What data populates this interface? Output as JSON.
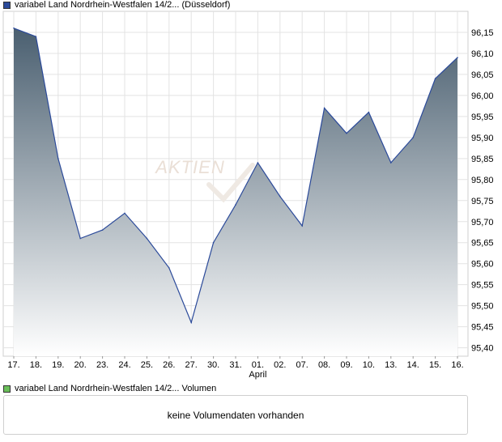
{
  "legend_price": {
    "label": "variabel Land Nordrhein-Westfalen 14/2... (Düsseldorf)",
    "color": "#2b4a9a"
  },
  "legend_volume": {
    "label": "variabel Land Nordrhein-Westfalen 14/2... Volumen",
    "color": "#6abf5a"
  },
  "volume_panel": {
    "message": "keine Volumendaten vorhanden"
  },
  "watermark": {
    "text": "AKTIEN"
  },
  "chart_data": {
    "type": "area",
    "title": "",
    "xlabel": "",
    "ylabel": "",
    "ylim": [
      95.38,
      96.2
    ],
    "yticks": [
      "95,40",
      "95,45",
      "95,50",
      "95,55",
      "95,60",
      "95,65",
      "95,70",
      "95,75",
      "95,80",
      "95,85",
      "95,90",
      "95,95",
      "96,00",
      "96,05",
      "96,10",
      "96,15"
    ],
    "x": [
      "17.",
      "18.",
      "19.",
      "20.",
      "23.",
      "24.",
      "25.",
      "26.",
      "27.",
      "30.",
      "31.",
      "01.",
      "02.",
      "07.",
      "08.",
      "09.",
      "10.",
      "13.",
      "14.",
      "15.",
      "16."
    ],
    "month_label": {
      "text": "April",
      "index": 11
    },
    "series": [
      {
        "values": [
          96.16,
          96.14,
          95.85,
          95.66,
          95.68,
          95.72,
          95.66,
          95.59,
          95.46,
          95.65,
          95.74,
          95.84,
          95.76,
          95.69,
          95.97,
          95.91,
          95.96,
          95.84,
          95.9,
          96.04,
          96.09
        ]
      }
    ],
    "grid": true,
    "line_color": "#2b4a9a",
    "fill_top_color": "#4a5f70",
    "fill_bottom_color": "#ffffff"
  }
}
